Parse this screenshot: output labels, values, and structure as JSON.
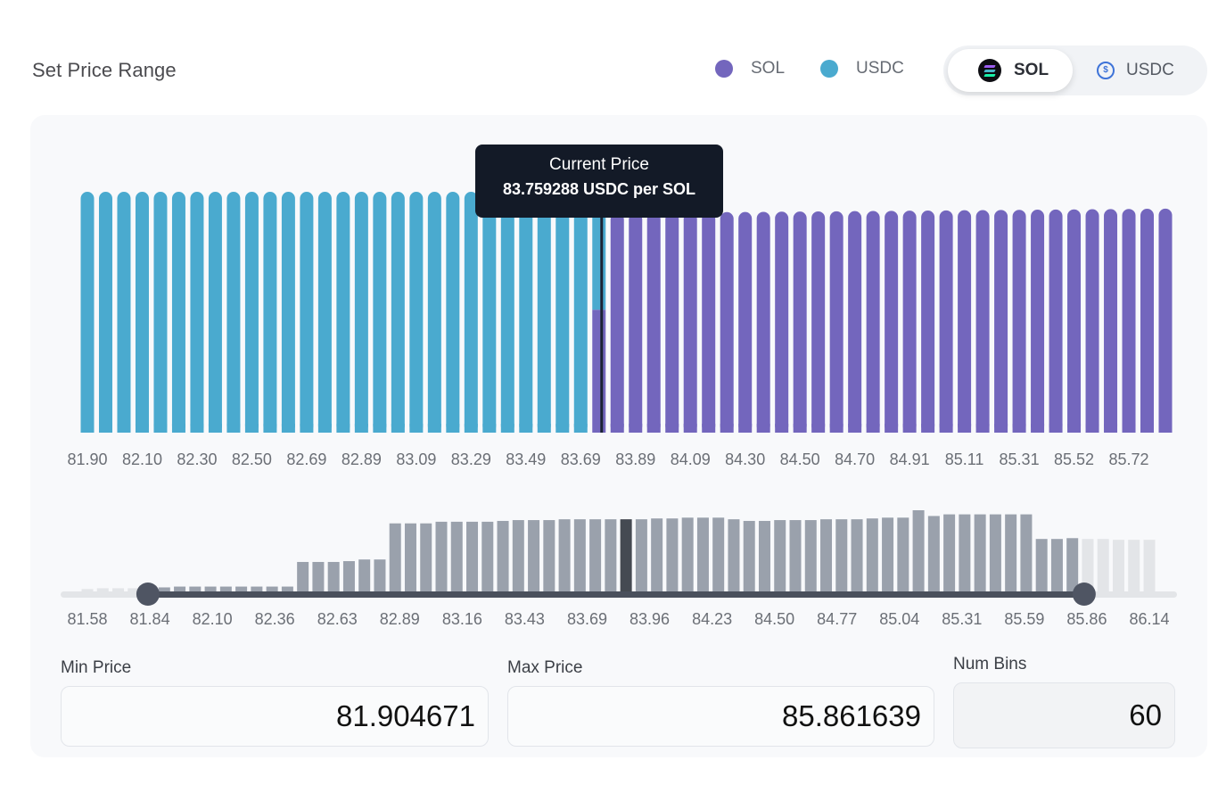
{
  "header": {
    "title": "Set Price Range"
  },
  "legend": [
    {
      "label": "SOL",
      "color": "#7366bd"
    },
    {
      "label": "USDC",
      "color": "#4aaacf"
    }
  ],
  "token_toggle": {
    "options": [
      {
        "label": "SOL",
        "icon": "solana-logo-icon",
        "selected": true
      },
      {
        "label": "USDC",
        "icon": "usdc-logo-icon",
        "selected": false
      }
    ]
  },
  "tooltip": {
    "title": "Current Price",
    "value": "83.759288 USDC per SOL"
  },
  "inputs": {
    "min_price": {
      "label": "Min Price",
      "value": "81.904671"
    },
    "max_price": {
      "label": "Max Price",
      "value": "85.861639"
    },
    "num_bins": {
      "label": "Num Bins",
      "value": "60"
    }
  },
  "colors": {
    "sol": "#7366bd",
    "usdc": "#4aaacf",
    "current_price_line": "#1a2233",
    "histogram_in_range": "#9aa1ac",
    "histogram_out_range": "#e3e5e8",
    "histogram_current": "#454a52",
    "slider_track": "#4a505c"
  },
  "chart_data": [
    {
      "type": "bar",
      "title": "Liquidity distribution",
      "num_bins": 60,
      "current_price": 83.759288,
      "current_bin_index": 28,
      "x_tick_labels": [
        "81.90",
        "82.10",
        "82.30",
        "82.50",
        "82.69",
        "82.89",
        "83.09",
        "83.29",
        "83.49",
        "83.69",
        "83.89",
        "84.09",
        "84.30",
        "84.50",
        "84.70",
        "84.91",
        "85.11",
        "85.31",
        "85.52",
        "85.72"
      ],
      "series": [
        {
          "name": "USDC",
          "bins": "0-28",
          "relative_height": 1.0,
          "split_bin_28_fraction": 0.49
        },
        {
          "name": "SOL",
          "bins": "28-59",
          "relative_height_start": 0.912,
          "relative_height_end": 0.93,
          "split_bin_28_fraction": 0.51
        }
      ],
      "legend": [
        "SOL",
        "USDC"
      ],
      "legend_position": "top-right"
    },
    {
      "type": "bar",
      "title": "Range selector histogram",
      "x_tick_labels": [
        "81.58",
        "81.84",
        "82.10",
        "82.36",
        "82.63",
        "82.89",
        "83.16",
        "83.43",
        "83.69",
        "83.96",
        "84.23",
        "84.50",
        "84.77",
        "85.04",
        "85.31",
        "85.59",
        "85.86",
        "86.14"
      ],
      "xlim": [
        81.58,
        86.14
      ],
      "selected_range": [
        81.84,
        85.86
      ],
      "current_bar_index": 35,
      "values": [
        0.04,
        0.05,
        0.05,
        0.05,
        0.05,
        0.06,
        0.07,
        0.07,
        0.07,
        0.07,
        0.07,
        0.07,
        0.07,
        0.07,
        0.37,
        0.37,
        0.37,
        0.38,
        0.4,
        0.4,
        0.84,
        0.84,
        0.84,
        0.86,
        0.86,
        0.86,
        0.86,
        0.87,
        0.88,
        0.88,
        0.88,
        0.89,
        0.89,
        0.89,
        0.89,
        0.89,
        0.89,
        0.9,
        0.9,
        0.91,
        0.91,
        0.91,
        0.89,
        0.87,
        0.87,
        0.88,
        0.88,
        0.88,
        0.89,
        0.89,
        0.89,
        0.9,
        0.91,
        0.91,
        1.0,
        0.93,
        0.95,
        0.95,
        0.95,
        0.95,
        0.95,
        0.95,
        0.65,
        0.65,
        0.66,
        0.65,
        0.65,
        0.64,
        0.64,
        0.64
      ]
    }
  ]
}
